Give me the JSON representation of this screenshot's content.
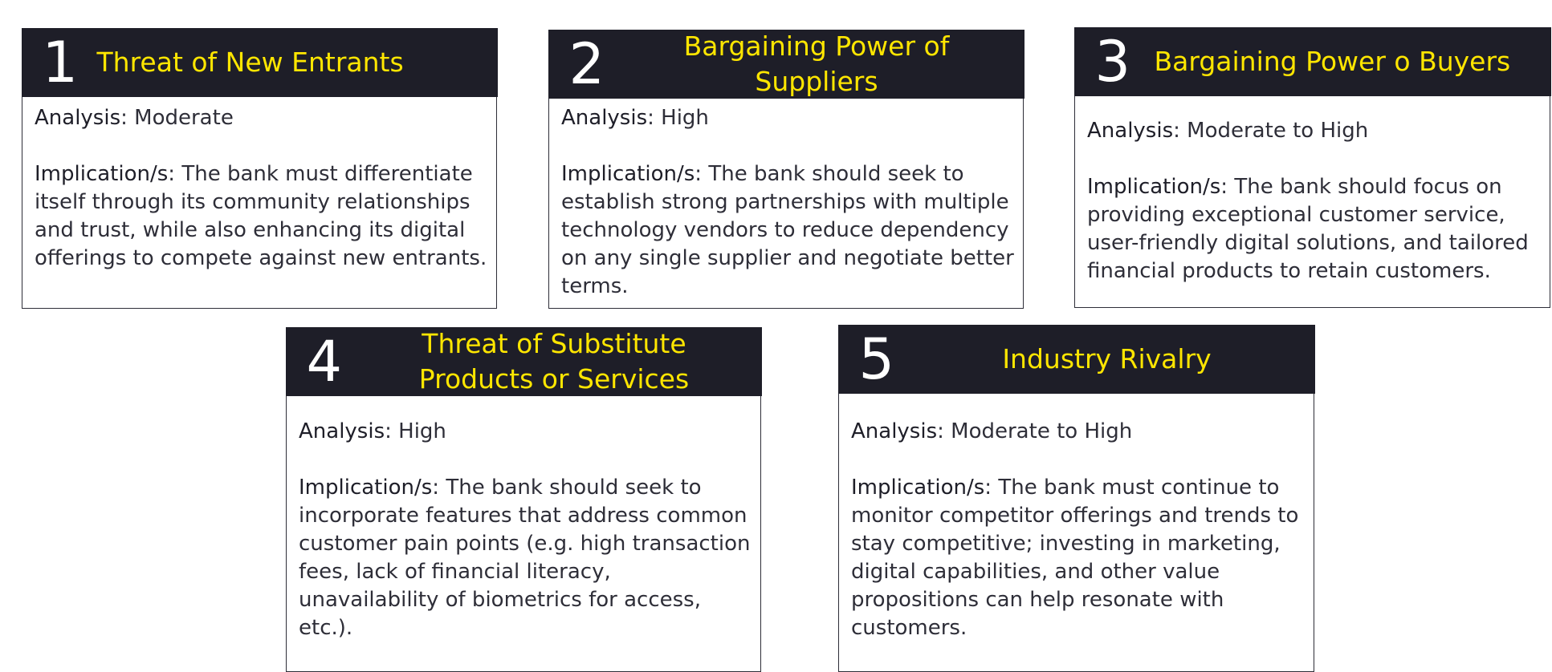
{
  "cards": [
    {
      "number": "1",
      "title": "Threat of New Entrants",
      "analysis_label": "Analysis",
      "analysis_value": "Moderate",
      "implication_label": "Implication/s",
      "implication_text": "The bank must differentiate itself through its community relationships and trust, while also enhancing its digital offerings to compete against new entrants."
    },
    {
      "number": "2",
      "title": "Bargaining Power of\nSuppliers",
      "analysis_label": "Analysis",
      "analysis_value": "High",
      "implication_label": "Implication/s",
      "implication_text": "The bank should seek to establish strong partnerships with multiple technology vendors to reduce dependency on any single supplier and negotiate better terms."
    },
    {
      "number": "3",
      "title": "Bargaining Power o Buyers",
      "analysis_label": "Analysis",
      "analysis_value": "Moderate to High",
      "implication_label": "Implication/s",
      "implication_text": "The bank should focus on providing exceptional customer service, user-friendly digital solutions, and tailored financial products to retain customers."
    },
    {
      "number": "4",
      "title": "Threat of Substitute\nProducts or Services",
      "analysis_label": "Analysis",
      "analysis_value": "High",
      "implication_label": "Implication/s",
      "implication_text": "The bank should seek to incorporate features that address common customer pain points (e.g. high transaction fees, lack of financial literacy, unavailability of biometrics for access, etc.)."
    },
    {
      "number": "5",
      "title": "Industry Rivalry",
      "analysis_label": "Analysis",
      "analysis_value": "Moderate to High",
      "implication_label": "Implication/s",
      "implication_text": "The bank must continue to monitor competitor offerings and trends to stay competitive; investing in marketing, digital capabilities, and other value propositions can help resonate with customers."
    }
  ],
  "colors": {
    "header_bg": "#1e1e28",
    "title_text": "#ffe600",
    "number_text": "#ffffff",
    "body_text": "#2e2e38",
    "border": "#2e2e38"
  }
}
